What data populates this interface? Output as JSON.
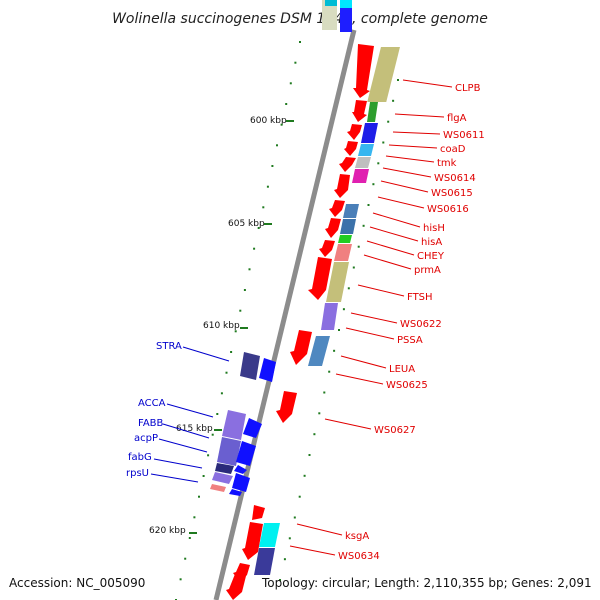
{
  "title": "Wolinella succinogenes DSM 1740, complete genome",
  "accession": "Accession: NC_005090",
  "topology": "Topology: circular; Length: 2,110,355 bp; Genes: 2,091",
  "colors": {
    "backbone": "#8c8c8c",
    "forward_gene": "#ff0000",
    "reverse_gene": "#0000ff",
    "tick": "#1f7a1f",
    "label_forward": "#e00000",
    "label_reverse": "#0000cc"
  },
  "scale_labels": [
    "600 kbp",
    "605 kbp",
    "610 kbp",
    "615 kbp",
    "620 kbp"
  ],
  "forward_genes": [
    "CLPB",
    "flgA",
    "WS0611",
    "coaD",
    "tmk",
    "WS0614",
    "WS0615",
    "WS0616",
    "hisH",
    "hisA",
    "CHEY",
    "prmA",
    "FTSH",
    "WS0622",
    "PSSA",
    "LEUA",
    "WS0625",
    "WS0627",
    "ksgA",
    "WS0634"
  ],
  "reverse_genes": [
    "STRA",
    "ACCA",
    "FABB",
    "acpP",
    "fabG",
    "rpsU"
  ]
}
